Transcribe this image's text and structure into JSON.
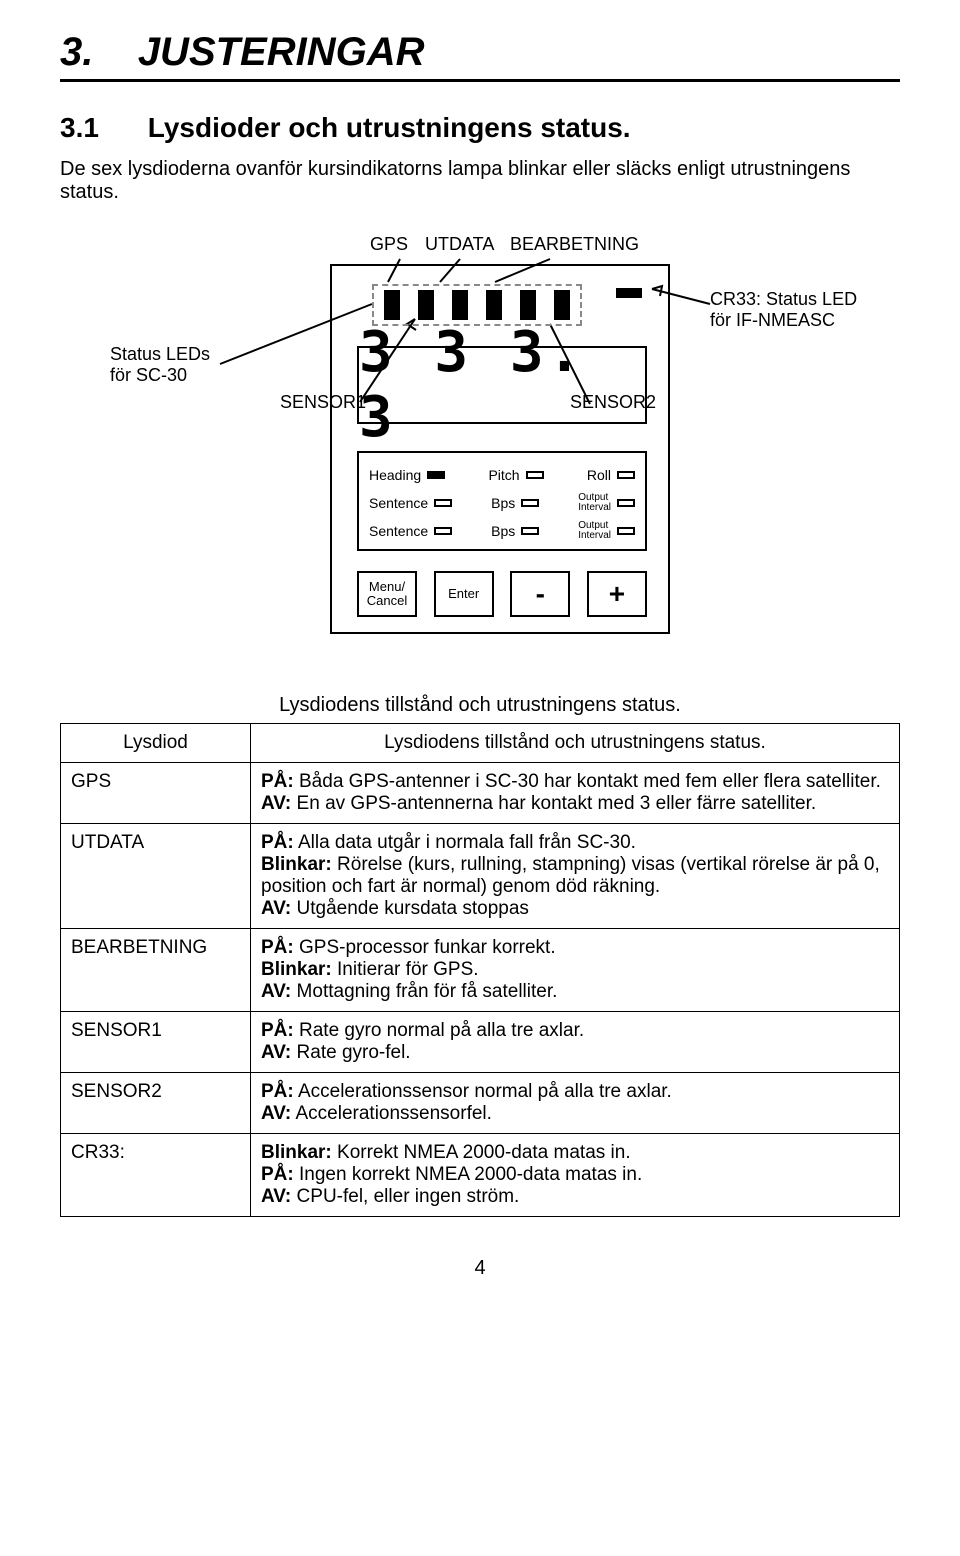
{
  "chapter": {
    "number": "3.",
    "title": "JUSTERINGAR"
  },
  "section": {
    "number": "3.1",
    "title": "Lysdioder och utrustningens status."
  },
  "intro": "De sex lysdioderna ovanför kursindikatorns lampa blinkar eller släcks enligt utrustningens status.",
  "diagram": {
    "top_labels": {
      "gps": "GPS",
      "utdata": "UTDATA",
      "bearbetning": "BEARBETNING"
    },
    "left_note": {
      "line1": "Status LEDs",
      "line2": "för SC-30"
    },
    "right_note": {
      "line1": "CR33: Status LED",
      "line2": "för IF-NMEASC"
    },
    "sensor1": "SENSOR1",
    "sensor2": "SENSOR2",
    "display_value": "3  3  3. 3",
    "labels_box": {
      "row1": {
        "a": "Heading",
        "b": "Pitch",
        "c": "Roll"
      },
      "row2": {
        "a": "Sentence",
        "b": "Bps",
        "c1": "Output",
        "c2": "Interval"
      },
      "row3": {
        "a": "Sentence",
        "b": "Bps",
        "c1": "Output",
        "c2": "Interval"
      }
    },
    "buttons": {
      "menu": "Menu/\nCancel",
      "enter": "Enter",
      "minus": "-",
      "plus": "+"
    }
  },
  "table": {
    "caption": "Lysdiodens tillstånd och utrustningens status.",
    "header": {
      "col1": "Lysdiod",
      "col2": "Lysdiodens tillstånd och utrustningens status."
    },
    "rows": [
      {
        "name": "GPS",
        "lines": [
          {
            "b": "PÅ:",
            "t": " Båda GPS-antenner i SC-30 har kontakt med fem eller flera satelliter."
          },
          {
            "b": "AV:",
            "t": " En av GPS-antennerna har kontakt med 3 eller färre satelliter."
          }
        ]
      },
      {
        "name": "UTDATA",
        "lines": [
          {
            "b": "PÅ:",
            "t": " Alla data utgår i normala fall från SC-30."
          },
          {
            "b": "Blinkar:",
            "t": " Rörelse (kurs, rullning, stampning) visas (vertikal rörelse är på 0, position och fart är normal) genom död räkning."
          },
          {
            "b": "AV:",
            "t": " Utgående kursdata stoppas"
          }
        ]
      },
      {
        "name": "BEARBETNING",
        "lines": [
          {
            "b": "PÅ:",
            "t": " GPS-processor funkar korrekt."
          },
          {
            "b": "Blinkar:",
            "t": " Initierar för GPS."
          },
          {
            "b": "AV:",
            "t": " Mottagning från för få satelliter."
          }
        ]
      },
      {
        "name": "SENSOR1",
        "lines": [
          {
            "b": "PÅ:",
            "t": " Rate gyro normal på alla tre axlar."
          },
          {
            "b": "AV:",
            "t": " Rate gyro-fel."
          }
        ]
      },
      {
        "name": "SENSOR2",
        "lines": [
          {
            "b": "PÅ:",
            "t": " Accelerationssensor normal på alla tre axlar."
          },
          {
            "b": "AV:",
            "t": " Accelerationssensorfel."
          }
        ]
      },
      {
        "name": "CR33:",
        "lines": [
          {
            "b": "Blinkar:",
            "t": " Korrekt NMEA 2000-data matas in."
          },
          {
            "b": "PÅ:",
            "t": " Ingen korrekt NMEA 2000-data matas in."
          },
          {
            "b": "AV:",
            "t": " CPU-fel, eller ingen ström."
          }
        ]
      }
    ]
  },
  "page_number": "4",
  "colors": {
    "text": "#000000",
    "bg": "#ffffff",
    "dash": "#888888"
  }
}
